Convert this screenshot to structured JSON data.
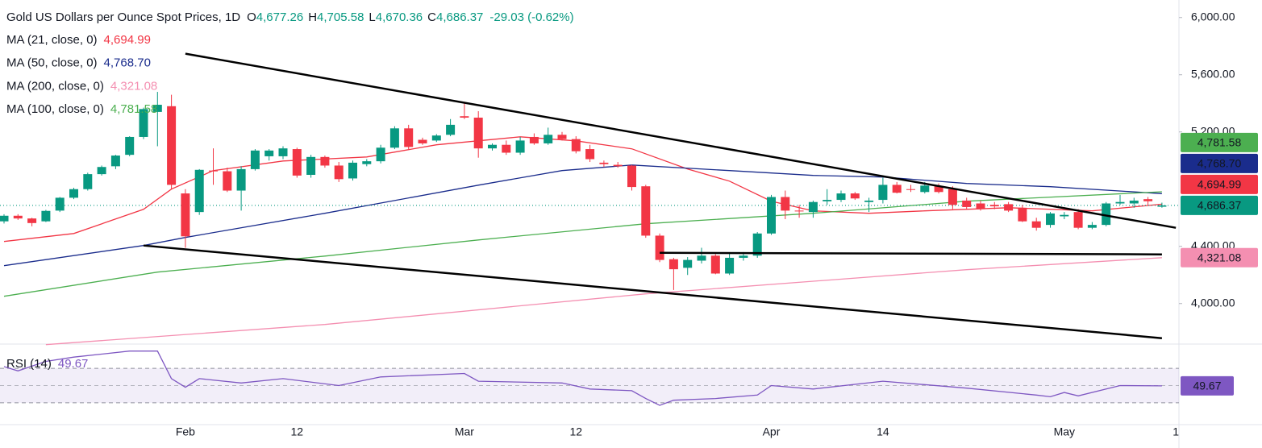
{
  "chart_data": {
    "type": "candlestick",
    "title": "Gold US Dollars per Ounce Spot Prices, 1D",
    "header_fields": [
      {
        "key": "O",
        "label": "4,677.26"
      },
      {
        "key": "H",
        "label": "4,705.58"
      },
      {
        "key": "L",
        "label": "4,670.36"
      },
      {
        "key": "C",
        "label": "4,686.37"
      }
    ],
    "change": "-29.03 (-0.62%)",
    "categories": [
      null,
      null,
      null,
      null,
      null,
      null,
      null,
      null,
      null,
      null,
      null,
      null,
      null,
      "Feb",
      null,
      null,
      null,
      null,
      null,
      null,
      null,
      "12",
      null,
      null,
      null,
      null,
      null,
      null,
      null,
      null,
      null,
      null,
      null,
      "Mar",
      null,
      null,
      null,
      null,
      null,
      null,
      null,
      "12",
      null,
      null,
      null,
      null,
      null,
      null,
      null,
      null,
      null,
      null,
      null,
      null,
      null,
      "Apr",
      null,
      null,
      null,
      null,
      null,
      null,
      null,
      "14",
      null,
      null,
      null,
      null,
      null,
      null,
      null,
      null,
      null,
      null,
      null,
      null,
      "May",
      null,
      null,
      null,
      null,
      null,
      null,
      null,
      "1"
    ],
    "ohlc": [
      [
        4575,
        4625,
        4560,
        4614
      ],
      [
        4614,
        4625,
        4585,
        4595
      ],
      [
        4595,
        4600,
        4540,
        4563
      ],
      [
        4575,
        4655,
        4570,
        4648
      ],
      [
        4650,
        4745,
        4640,
        4740
      ],
      [
        4740,
        4810,
        4730,
        4800
      ],
      [
        4800,
        4915,
        4790,
        4905
      ],
      [
        4905,
        4965,
        4895,
        4955
      ],
      [
        4960,
        5040,
        4940,
        5035
      ],
      [
        5040,
        5170,
        5030,
        5165
      ],
      [
        5165,
        5370,
        5150,
        5360
      ],
      [
        5340,
        5480,
        5100,
        5390
      ],
      [
        5380,
        5460,
        4800,
        4830
      ],
      [
        4770,
        4800,
        4390,
        4470
      ],
      [
        4640,
        4940,
        4620,
        4935
      ],
      [
        4930,
        5085,
        4830,
        4925
      ],
      [
        4925,
        4950,
        4780,
        4790
      ],
      [
        4790,
        4960,
        4650,
        4940
      ],
      [
        4940,
        5080,
        4930,
        5070
      ],
      [
        5030,
        5080,
        5000,
        5070
      ],
      [
        5030,
        5100,
        5010,
        5085
      ],
      [
        5080,
        5090,
        4880,
        4895
      ],
      [
        4900,
        5040,
        4880,
        5025
      ],
      [
        5025,
        5035,
        4950,
        4965
      ],
      [
        4965,
        4990,
        4850,
        4870
      ],
      [
        4875,
        5000,
        4860,
        4985
      ],
      [
        4975,
        5010,
        4960,
        4995
      ],
      [
        4995,
        5110,
        4980,
        5090
      ],
      [
        5090,
        5240,
        5080,
        5225
      ],
      [
        5225,
        5250,
        5080,
        5095
      ],
      [
        5145,
        5160,
        5110,
        5120
      ],
      [
        5140,
        5185,
        5130,
        5175
      ],
      [
        5180,
        5290,
        5170,
        5250
      ],
      [
        5310,
        5410,
        5290,
        5300
      ],
      [
        5300,
        5345,
        5020,
        5085
      ],
      [
        5085,
        5120,
        5070,
        5110
      ],
      [
        5110,
        5140,
        5040,
        5055
      ],
      [
        5055,
        5165,
        5040,
        5140
      ],
      [
        5165,
        5190,
        5110,
        5120
      ],
      [
        5120,
        5230,
        5110,
        5180
      ],
      [
        5180,
        5200,
        5140,
        5150
      ],
      [
        5150,
        5170,
        5050,
        5065
      ],
      [
        5080,
        5110,
        4990,
        5010
      ],
      [
        4985,
        5000,
        4955,
        4975
      ],
      [
        4970,
        4990,
        4950,
        4960
      ],
      [
        4965,
        4970,
        4790,
        4815
      ],
      [
        4820,
        4830,
        4460,
        4475
      ],
      [
        4475,
        4490,
        4290,
        4305
      ],
      [
        4310,
        4320,
        4095,
        4240
      ],
      [
        4250,
        4325,
        4200,
        4305
      ],
      [
        4300,
        4390,
        4280,
        4335
      ],
      [
        4335,
        4345,
        4205,
        4210
      ],
      [
        4210,
        4350,
        4200,
        4320
      ],
      [
        4320,
        4360,
        4300,
        4335
      ],
      [
        4335,
        4500,
        4320,
        4490
      ],
      [
        4490,
        4760,
        4480,
        4745
      ],
      [
        4745,
        4790,
        4590,
        4650
      ],
      [
        4650,
        4690,
        4600,
        4645
      ],
      [
        4640,
        4720,
        4600,
        4710
      ],
      [
        4715,
        4800,
        4690,
        4725
      ],
      [
        4725,
        4790,
        4710,
        4770
      ],
      [
        4770,
        4780,
        4725,
        4735
      ],
      [
        4710,
        4740,
        4640,
        4720
      ],
      [
        4725,
        4880,
        4700,
        4830
      ],
      [
        4830,
        4850,
        4770,
        4775
      ],
      [
        4800,
        4830,
        4780,
        4795
      ],
      [
        4780,
        4850,
        4770,
        4825
      ],
      [
        4820,
        4840,
        4770,
        4780
      ],
      [
        4800,
        4820,
        4660,
        4690
      ],
      [
        4720,
        4740,
        4660,
        4675
      ],
      [
        4700,
        4720,
        4650,
        4660
      ],
      [
        4690,
        4710,
        4660,
        4680
      ],
      [
        4695,
        4710,
        4640,
        4650
      ],
      [
        4670,
        4690,
        4570,
        4575
      ],
      [
        4575,
        4600,
        4510,
        4530
      ],
      [
        4550,
        4640,
        4530,
        4630
      ],
      [
        4610,
        4640,
        4590,
        4620
      ],
      [
        4640,
        4660,
        4520,
        4530
      ],
      [
        4530,
        4570,
        4520,
        4550
      ],
      [
        4550,
        4710,
        4540,
        4700
      ],
      [
        4700,
        4760,
        4690,
        4710
      ],
      [
        4700,
        4740,
        4670,
        4720
      ],
      [
        4730,
        4745,
        4690,
        4715.4
      ],
      [
        4677.26,
        4705.58,
        4670.36,
        4686.37
      ],
      null
    ],
    "up_color": "#089981",
    "down_color": "#f23645",
    "ylim": [
      3700,
      6100
    ],
    "yticks": [
      {
        "value": 4000,
        "label": "4,000.00"
      },
      {
        "value": 4400,
        "label": "4,400.00"
      },
      {
        "value": 5200,
        "label": "5,200.00"
      },
      {
        "value": 5600,
        "label": "5,600.00"
      },
      {
        "value": 6000,
        "label": "6,000.00"
      }
    ],
    "grid": false,
    "last_price": 4686.37,
    "ma": [
      {
        "name": "MA (21, close, 0)",
        "color": "#f23645",
        "x": [
          0,
          5,
          10,
          12,
          15,
          20,
          26,
          31,
          37,
          41,
          45,
          49,
          52,
          55,
          58,
          62,
          66,
          72,
          78,
          83
        ],
        "values": [
          4434,
          4490,
          4659,
          4800,
          4930,
          4997,
          5025,
          5110,
          5166,
          5138,
          5082,
          4941,
          4856,
          4716,
          4648,
          4631,
          4648,
          4670,
          4648,
          4694.99
        ],
        "value_label": "4,694.99"
      },
      {
        "name": "MA (50, close, 0)",
        "color": "#1a2c8c",
        "x": [
          0,
          10,
          13,
          23,
          34,
          40,
          45,
          52,
          58,
          63,
          69,
          75,
          83
        ],
        "values": [
          4265,
          4406,
          4462,
          4631,
          4828,
          4930,
          4969,
          4930,
          4896,
          4885,
          4840,
          4817,
          4768.7
        ],
        "value_label": "4,768.70"
      },
      {
        "name": "MA (200, close, 0)",
        "color": "#f48fb1",
        "x": [
          3,
          23,
          46,
          69,
          83
        ],
        "values": [
          3713,
          3854,
          4068,
          4237,
          4321.08
        ],
        "value_label": "4,321.08"
      },
      {
        "name": "MA (100, close, 0)",
        "color": "#4caf50",
        "x": [
          0,
          11,
          23,
          34,
          46,
          58,
          69,
          83
        ],
        "values": [
          4051,
          4220,
          4332,
          4445,
          4558,
          4631,
          4716,
          4781.58
        ],
        "value_label": "4,781.58"
      }
    ],
    "trendlines": [
      {
        "x": [
          13,
          84
        ],
        "values": [
          5747,
          4530
        ]
      },
      {
        "x": [
          10,
          83
        ],
        "values": [
          4406,
          3758
        ]
      },
      {
        "x": [
          47,
          83
        ],
        "values": [
          4355,
          4344
        ]
      }
    ],
    "trendline_color": "#000000",
    "rsi": {
      "name": "RSI (14)",
      "color": "#7e57c2",
      "x": [
        0,
        1,
        3,
        5,
        9,
        11,
        12,
        13,
        14,
        17,
        20,
        24,
        27,
        33,
        34,
        40,
        42,
        45,
        46,
        47,
        48,
        51,
        54,
        55,
        58,
        63,
        69,
        74,
        75,
        76,
        77,
        80,
        83
      ],
      "values": [
        72,
        67,
        78,
        83,
        90,
        90,
        58,
        48,
        58,
        53,
        58,
        50,
        60,
        64,
        55,
        53,
        46,
        44,
        35,
        27,
        33,
        35,
        39,
        50,
        46,
        55,
        47,
        39,
        37,
        42,
        38,
        50,
        49.67
      ],
      "value_label": "49.67",
      "ylim": [
        0,
        100
      ],
      "levels": [
        70,
        50,
        30
      ]
    }
  }
}
